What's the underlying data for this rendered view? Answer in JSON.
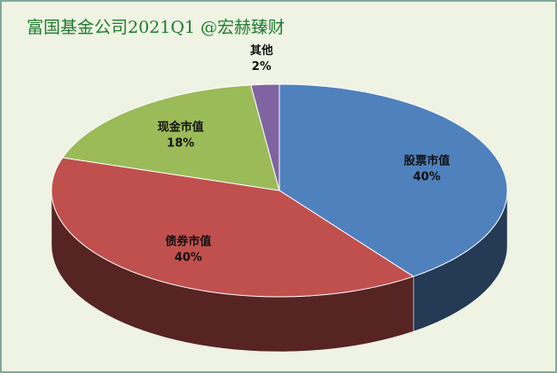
{
  "chart_data": {
    "type": "pie",
    "title": "富国基金公司2021Q1  @宏赫臻财",
    "categories": [
      "股票市值",
      "债券市值",
      "现金市值",
      "其他"
    ],
    "values": [
      40,
      40,
      18,
      2
    ],
    "value_labels": [
      "40%",
      "40%",
      "18%",
      "2%"
    ],
    "colors": [
      "#4f81bd",
      "#c0504d",
      "#9bbb59",
      "#8064a2"
    ]
  }
}
